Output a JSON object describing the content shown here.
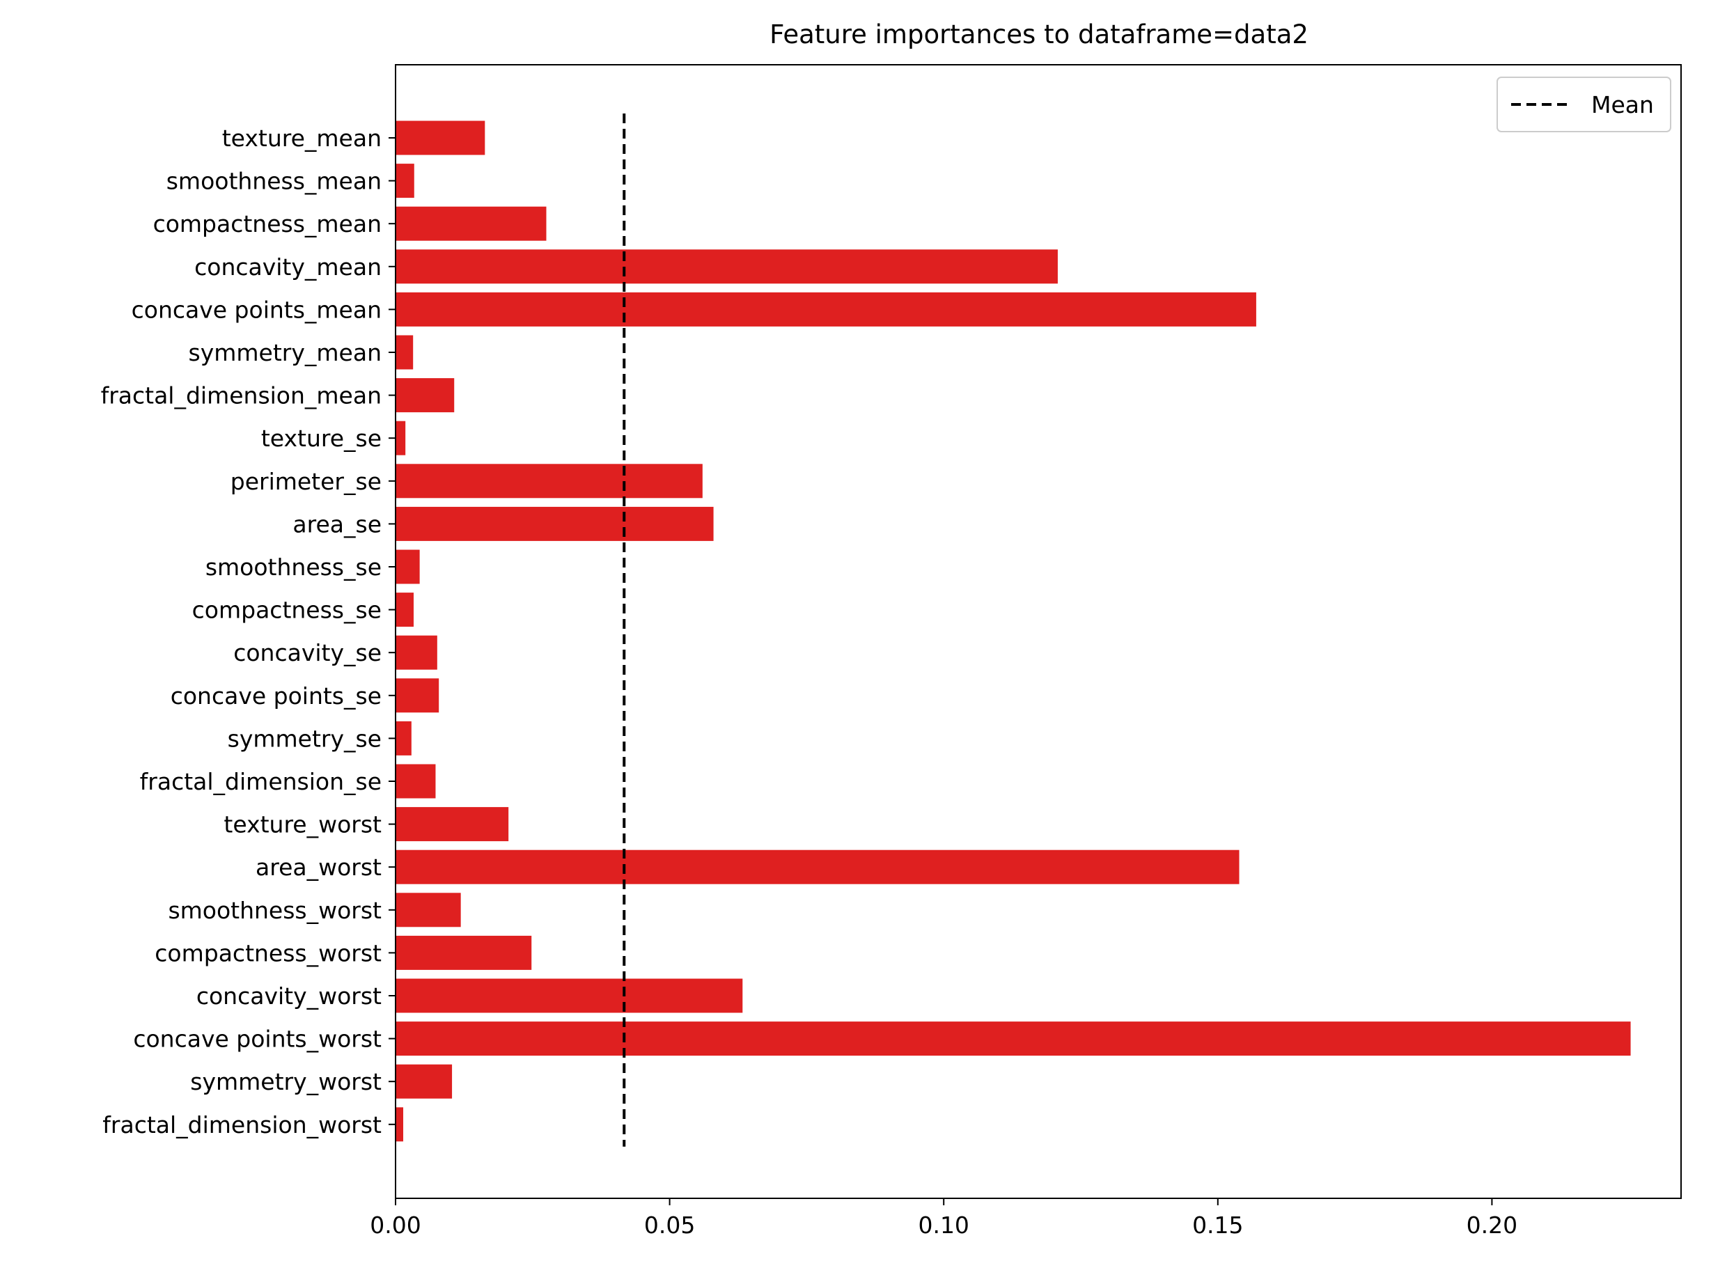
{
  "chart_data": {
    "type": "bar",
    "orientation": "horizontal",
    "title": "Feature importances to dataframe=data2",
    "xlabel": "",
    "ylabel": "",
    "categories": [
      "texture_mean",
      "smoothness_mean",
      "compactness_mean",
      "concavity_mean",
      "concave points_mean",
      "symmetry_mean",
      "fractal_dimension_mean",
      "texture_se",
      "perimeter_se",
      "area_se",
      "smoothness_se",
      "compactness_se",
      "concavity_se",
      "concave points_se",
      "symmetry_se",
      "fractal_dimension_se",
      "texture_worst",
      "area_worst",
      "smoothness_worst",
      "compactness_worst",
      "concavity_worst",
      "concave points_worst",
      "symmetry_worst",
      "fractal_dimension_worst"
    ],
    "values": [
      0.0163,
      0.0034,
      0.0275,
      0.1208,
      0.157,
      0.0032,
      0.0107,
      0.0018,
      0.056,
      0.058,
      0.0044,
      0.0033,
      0.0076,
      0.0079,
      0.0029,
      0.0073,
      0.0206,
      0.1539,
      0.0119,
      0.0248,
      0.0633,
      0.2253,
      0.0103,
      0.0014
    ],
    "mean_line": {
      "value": 0.0417,
      "label": "Mean",
      "style": "dashed",
      "color": "#000000"
    },
    "xlim": [
      0,
      0.2345
    ],
    "xticks": [
      0.0,
      0.05,
      0.1,
      0.15,
      0.2
    ],
    "xtick_labels": [
      "0.00",
      "0.05",
      "0.10",
      "0.15",
      "0.20"
    ],
    "bar_color": "#df2020",
    "grid": false,
    "legend": {
      "position": "top-right",
      "entries": [
        "Mean"
      ]
    }
  }
}
